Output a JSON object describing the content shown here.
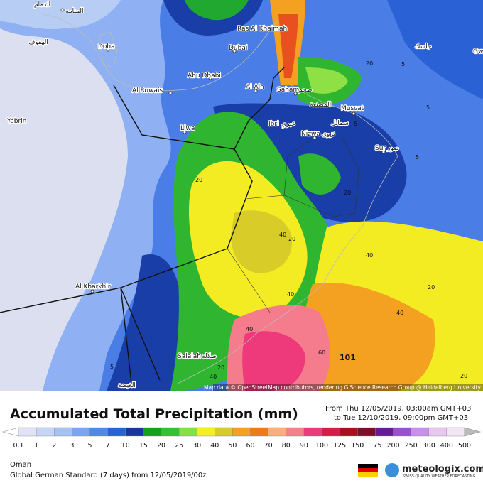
{
  "map": {
    "places": [
      "الدمام",
      "المنامة",
      "الهفوف",
      "Doha",
      "Ras Al Khaimah",
      "Dubai",
      "Abu Dhabi",
      "Al Ruwais",
      "Yabrin",
      "Liwa",
      "Al Ain",
      "Saham",
      "صحم",
      "المصنعة",
      "Muscat",
      "Ibri",
      "عبري",
      "سمائل",
      "Nizwa",
      "نزوى",
      "Sur",
      "صور",
      "Al Kharkhir",
      "Salalah",
      "صلالة",
      "الغيضة",
      "جاسك",
      "Gw"
    ],
    "contour_labels": [
      "20",
      "5",
      "5",
      "5",
      "5",
      "20",
      "20",
      "40",
      "20",
      "40",
      "20",
      "40",
      "40",
      "60",
      "40",
      "20",
      "40",
      "20",
      "5"
    ],
    "max_label": "101",
    "attribution": "Map data © OpenStreetMap contributors, rendering GIScience Research Group @ Heidelberg University"
  },
  "legend": {
    "title": "Accumulated Total Precipitation (mm)",
    "period_from": "From Thu 12/05/2019, 03:00am GMT+03",
    "period_to": "to Tue 12/10/2019, 09:00pm GMT+03",
    "scale": [
      "0.1",
      "1",
      "2",
      "3",
      "5",
      "7",
      "10",
      "15",
      "20",
      "25",
      "30",
      "40",
      "50",
      "60",
      "70",
      "80",
      "90",
      "100",
      "125",
      "150",
      "175",
      "200",
      "250",
      "300",
      "400",
      "500"
    ]
  },
  "footer": {
    "region": "Oman",
    "model": "Global German Standard (7 days) from 12/05/2019/00z",
    "brand": "meteologix.com",
    "tagline": "SWISS QUALITY WEATHER FORECASTING"
  }
}
